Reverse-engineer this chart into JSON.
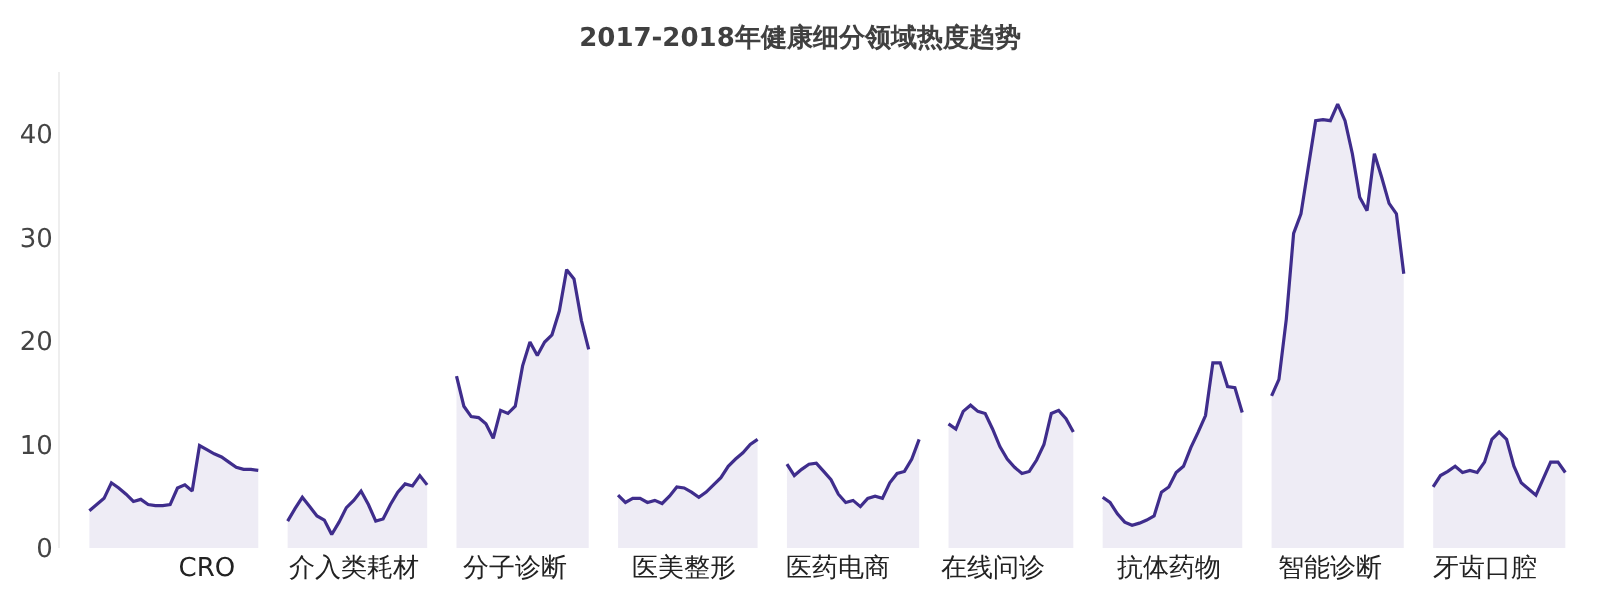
{
  "chart_data": {
    "type": "area",
    "title": "2017-2018年健康细分领域热度趋势",
    "categories": [
      null,
      null,
      null,
      null,
      null,
      null,
      null,
      null,
      null,
      null,
      null,
      null,
      null,
      null,
      null,
      null,
      "CRO",
      null,
      null,
      null,
      null,
      null,
      null,
      null,
      null,
      null,
      null,
      null,
      null,
      null,
      null,
      null,
      null,
      null,
      null,
      null,
      "介入类耗材",
      null,
      null,
      null,
      null,
      null,
      null,
      null,
      null,
      null,
      null,
      null,
      null,
      null,
      null,
      null,
      null,
      null,
      null,
      null,
      null,
      null,
      "分子诊断",
      null,
      null,
      null,
      null,
      null,
      null,
      null,
      null,
      null,
      null,
      null,
      null,
      null,
      null,
      null,
      null,
      null,
      null,
      null,
      null,
      null,
      null,
      "医美整形",
      null,
      null,
      null,
      null,
      null,
      null,
      null,
      null,
      null,
      null,
      null,
      null,
      null,
      null,
      null,
      null,
      null,
      null,
      null,
      null,
      "医药电商",
      null,
      null,
      null,
      null,
      null,
      null,
      null,
      null,
      null,
      null,
      null,
      null,
      null,
      null,
      null,
      null,
      null,
      null,
      null,
      null,
      "在线问诊",
      null,
      null,
      null,
      null,
      null,
      null,
      null,
      null,
      null,
      null,
      null,
      null,
      null,
      null,
      null,
      null,
      null,
      null,
      null,
      null,
      null,
      null,
      null,
      "抗体药物",
      null,
      null,
      null,
      null,
      null,
      null,
      null,
      null,
      null,
      null,
      null,
      null,
      null,
      null,
      null,
      null,
      null,
      null,
      null,
      null,
      null,
      "智能诊断",
      null,
      null,
      null,
      null,
      null,
      null,
      null,
      null,
      null,
      null,
      null,
      null,
      null,
      null,
      null,
      null,
      null,
      null,
      null,
      null,
      "牙齿口腔",
      null,
      null,
      null,
      null,
      null,
      null,
      null,
      null,
      null,
      null,
      null
    ],
    "ylim": [
      0,
      46
    ],
    "yticks": [
      0,
      10,
      20,
      30,
      40
    ],
    "grid": false,
    "series": [
      {
        "color": "#3f2d8c",
        "values": [
          3.6,
          4.2,
          4.8,
          6.3,
          5.8,
          5.2,
          4.5,
          4.7,
          4.2,
          4.1,
          4.1,
          4.2,
          5.8,
          6.1,
          5.5,
          9.9,
          9.5,
          9.1,
          8.8,
          8.3,
          7.8,
          7.6,
          7.6,
          7.5,
          null,
          null,
          null,
          2.6,
          3.8,
          4.9,
          4.0,
          3.1,
          2.7,
          1.3,
          2.5,
          3.9,
          4.6,
          5.5,
          4.2,
          2.6,
          2.8,
          4.2,
          5.4,
          6.2,
          6.0,
          7.0,
          6.1,
          null,
          null,
          null,
          16.6,
          13.7,
          12.7,
          12.6,
          12.0,
          10.6,
          13.3,
          13.0,
          13.7,
          17.6,
          19.9,
          18.6,
          19.9,
          20.6,
          22.9,
          26.9,
          26.0,
          22.0,
          19.2,
          null,
          null,
          null,
          5.1,
          4.4,
          4.8,
          4.8,
          4.4,
          4.6,
          4.3,
          5.0,
          5.9,
          5.8,
          5.4,
          4.9,
          5.4,
          6.1,
          6.8,
          7.9,
          8.6,
          9.2,
          10.0,
          10.5,
          null,
          null,
          null,
          8.1,
          7.0,
          7.6,
          8.1,
          8.2,
          7.4,
          6.6,
          5.2,
          4.4,
          4.6,
          4.0,
          4.8,
          5.0,
          4.8,
          6.3,
          7.2,
          7.4,
          8.6,
          10.5,
          null,
          null,
          null,
          12.0,
          11.5,
          13.2,
          13.8,
          13.2,
          13.0,
          11.5,
          9.8,
          8.6,
          7.8,
          7.2,
          7.4,
          8.5,
          10.0,
          13.0,
          13.3,
          12.5,
          11.2,
          null,
          null,
          null,
          4.9,
          4.4,
          3.3,
          2.5,
          2.2,
          2.4,
          2.7,
          3.1,
          5.4,
          5.9,
          7.3,
          7.9,
          9.7,
          11.2,
          12.8,
          17.9,
          17.9,
          15.6,
          15.5,
          13.1,
          null,
          null,
          null,
          14.7,
          16.3,
          22.1,
          30.4,
          32.3,
          36.8,
          41.3,
          41.4,
          41.3,
          42.9,
          41.3,
          38.1,
          33.9,
          32.6,
          38.1,
          35.8,
          33.3,
          32.3,
          26.5,
          null,
          null,
          null,
          5.9,
          7.0,
          7.4,
          7.9,
          7.3,
          7.5,
          7.3,
          8.3,
          10.5,
          11.2,
          10.5,
          7.9,
          6.3,
          5.7,
          5.1,
          6.7,
          8.3,
          8.3,
          7.3
        ]
      }
    ]
  }
}
